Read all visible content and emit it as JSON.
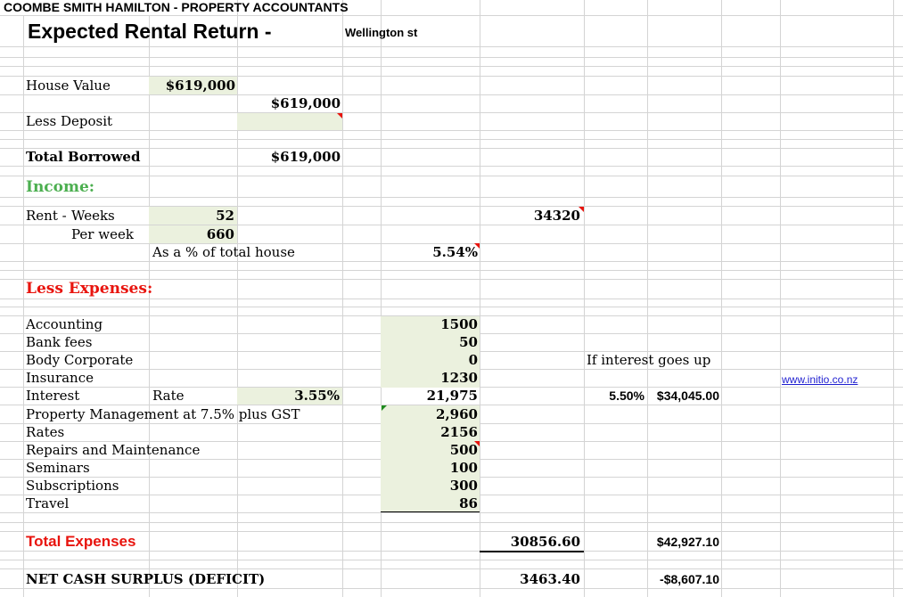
{
  "firm_name": "COOMBE SMITH HAMILTON - PROPERTY ACCOUNTANTS",
  "sheet_title": "Expected Rental Return -",
  "property_address": "Wellington st",
  "house_value": {
    "label": "House Value",
    "value": "$619,000",
    "total": "$619,000"
  },
  "less_deposit": {
    "label": "Less Deposit",
    "value": ""
  },
  "total_borrowed": {
    "label": "Total Borrowed",
    "value": "$619,000"
  },
  "income": {
    "heading": "Income:",
    "rent_label": "Rent -",
    "weeks_label": "Weeks",
    "weeks_value": "52",
    "per_week_label": "Per week",
    "per_week_value": "660",
    "annual_rent": "34320",
    "pct_label": "As a % of total house",
    "pct_value": "5.54%"
  },
  "expenses": {
    "heading": "Less Expenses:",
    "items": [
      {
        "label": "Accounting",
        "value": "1500"
      },
      {
        "label": "Bank fees",
        "value": "50"
      },
      {
        "label": "Body Corporate",
        "value": "0"
      },
      {
        "label": "Insurance",
        "value": "1230"
      },
      {
        "label": "Interest",
        "value": "21,975"
      },
      {
        "label": "Property Management at 7.5% plus GST",
        "value": "2,960"
      },
      {
        "label": "Rates",
        "value": "2156"
      },
      {
        "label": "Repairs and Maintenance",
        "value": "500"
      },
      {
        "label": "Seminars",
        "value": "100"
      },
      {
        "label": "Subscriptions",
        "value": "300"
      },
      {
        "label": "Travel",
        "value": "86"
      }
    ],
    "rate_label": "Rate",
    "rate_value": "3.55%"
  },
  "scenario": {
    "label": "If interest goes up",
    "rate": "5.50%",
    "interest": "$34,045.00",
    "total_expenses": "$42,927.10",
    "net": "-$8,607.10"
  },
  "website": "www.initio.co.nz",
  "total_expenses": {
    "label": "Total Expenses",
    "value": "30856.60"
  },
  "net_cash": {
    "label": "NET CASH SURPLUS (DEFICIT)",
    "value": "3463.40"
  },
  "colors": {
    "gridline": "#d4d4d4",
    "input_fill": "#ebf1de",
    "income_green": "#4caf50",
    "expense_red": "#e8140e",
    "link_blue": "#1f1fd0"
  }
}
